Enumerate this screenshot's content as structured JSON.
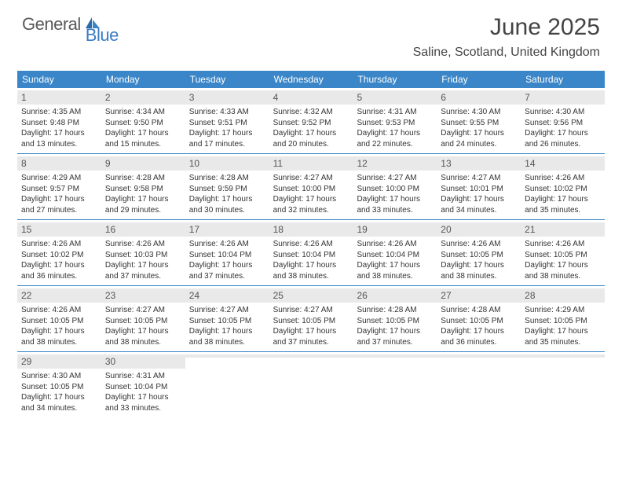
{
  "logo": {
    "text1": "General",
    "text2": "Blue"
  },
  "title": "June 2025",
  "location": "Saline, Scotland, United Kingdom",
  "colors": {
    "header_bg": "#3a86c8",
    "header_text": "#ffffff",
    "daynum_bg": "#e9e9e9",
    "text": "#333333",
    "logo_gray": "#5a5a5a",
    "logo_blue": "#3a7cc4",
    "title_color": "#444444",
    "divider": "#3a86c8"
  },
  "dow": [
    "Sunday",
    "Monday",
    "Tuesday",
    "Wednesday",
    "Thursday",
    "Friday",
    "Saturday"
  ],
  "weeks": [
    [
      {
        "n": "1",
        "sr": "Sunrise: 4:35 AM",
        "ss": "Sunset: 9:48 PM",
        "d1": "Daylight: 17 hours",
        "d2": "and 13 minutes."
      },
      {
        "n": "2",
        "sr": "Sunrise: 4:34 AM",
        "ss": "Sunset: 9:50 PM",
        "d1": "Daylight: 17 hours",
        "d2": "and 15 minutes."
      },
      {
        "n": "3",
        "sr": "Sunrise: 4:33 AM",
        "ss": "Sunset: 9:51 PM",
        "d1": "Daylight: 17 hours",
        "d2": "and 17 minutes."
      },
      {
        "n": "4",
        "sr": "Sunrise: 4:32 AM",
        "ss": "Sunset: 9:52 PM",
        "d1": "Daylight: 17 hours",
        "d2": "and 20 minutes."
      },
      {
        "n": "5",
        "sr": "Sunrise: 4:31 AM",
        "ss": "Sunset: 9:53 PM",
        "d1": "Daylight: 17 hours",
        "d2": "and 22 minutes."
      },
      {
        "n": "6",
        "sr": "Sunrise: 4:30 AM",
        "ss": "Sunset: 9:55 PM",
        "d1": "Daylight: 17 hours",
        "d2": "and 24 minutes."
      },
      {
        "n": "7",
        "sr": "Sunrise: 4:30 AM",
        "ss": "Sunset: 9:56 PM",
        "d1": "Daylight: 17 hours",
        "d2": "and 26 minutes."
      }
    ],
    [
      {
        "n": "8",
        "sr": "Sunrise: 4:29 AM",
        "ss": "Sunset: 9:57 PM",
        "d1": "Daylight: 17 hours",
        "d2": "and 27 minutes."
      },
      {
        "n": "9",
        "sr": "Sunrise: 4:28 AM",
        "ss": "Sunset: 9:58 PM",
        "d1": "Daylight: 17 hours",
        "d2": "and 29 minutes."
      },
      {
        "n": "10",
        "sr": "Sunrise: 4:28 AM",
        "ss": "Sunset: 9:59 PM",
        "d1": "Daylight: 17 hours",
        "d2": "and 30 minutes."
      },
      {
        "n": "11",
        "sr": "Sunrise: 4:27 AM",
        "ss": "Sunset: 10:00 PM",
        "d1": "Daylight: 17 hours",
        "d2": "and 32 minutes."
      },
      {
        "n": "12",
        "sr": "Sunrise: 4:27 AM",
        "ss": "Sunset: 10:00 PM",
        "d1": "Daylight: 17 hours",
        "d2": "and 33 minutes."
      },
      {
        "n": "13",
        "sr": "Sunrise: 4:27 AM",
        "ss": "Sunset: 10:01 PM",
        "d1": "Daylight: 17 hours",
        "d2": "and 34 minutes."
      },
      {
        "n": "14",
        "sr": "Sunrise: 4:26 AM",
        "ss": "Sunset: 10:02 PM",
        "d1": "Daylight: 17 hours",
        "d2": "and 35 minutes."
      }
    ],
    [
      {
        "n": "15",
        "sr": "Sunrise: 4:26 AM",
        "ss": "Sunset: 10:02 PM",
        "d1": "Daylight: 17 hours",
        "d2": "and 36 minutes."
      },
      {
        "n": "16",
        "sr": "Sunrise: 4:26 AM",
        "ss": "Sunset: 10:03 PM",
        "d1": "Daylight: 17 hours",
        "d2": "and 37 minutes."
      },
      {
        "n": "17",
        "sr": "Sunrise: 4:26 AM",
        "ss": "Sunset: 10:04 PM",
        "d1": "Daylight: 17 hours",
        "d2": "and 37 minutes."
      },
      {
        "n": "18",
        "sr": "Sunrise: 4:26 AM",
        "ss": "Sunset: 10:04 PM",
        "d1": "Daylight: 17 hours",
        "d2": "and 38 minutes."
      },
      {
        "n": "19",
        "sr": "Sunrise: 4:26 AM",
        "ss": "Sunset: 10:04 PM",
        "d1": "Daylight: 17 hours",
        "d2": "and 38 minutes."
      },
      {
        "n": "20",
        "sr": "Sunrise: 4:26 AM",
        "ss": "Sunset: 10:05 PM",
        "d1": "Daylight: 17 hours",
        "d2": "and 38 minutes."
      },
      {
        "n": "21",
        "sr": "Sunrise: 4:26 AM",
        "ss": "Sunset: 10:05 PM",
        "d1": "Daylight: 17 hours",
        "d2": "and 38 minutes."
      }
    ],
    [
      {
        "n": "22",
        "sr": "Sunrise: 4:26 AM",
        "ss": "Sunset: 10:05 PM",
        "d1": "Daylight: 17 hours",
        "d2": "and 38 minutes."
      },
      {
        "n": "23",
        "sr": "Sunrise: 4:27 AM",
        "ss": "Sunset: 10:05 PM",
        "d1": "Daylight: 17 hours",
        "d2": "and 38 minutes."
      },
      {
        "n": "24",
        "sr": "Sunrise: 4:27 AM",
        "ss": "Sunset: 10:05 PM",
        "d1": "Daylight: 17 hours",
        "d2": "and 38 minutes."
      },
      {
        "n": "25",
        "sr": "Sunrise: 4:27 AM",
        "ss": "Sunset: 10:05 PM",
        "d1": "Daylight: 17 hours",
        "d2": "and 37 minutes."
      },
      {
        "n": "26",
        "sr": "Sunrise: 4:28 AM",
        "ss": "Sunset: 10:05 PM",
        "d1": "Daylight: 17 hours",
        "d2": "and 37 minutes."
      },
      {
        "n": "27",
        "sr": "Sunrise: 4:28 AM",
        "ss": "Sunset: 10:05 PM",
        "d1": "Daylight: 17 hours",
        "d2": "and 36 minutes."
      },
      {
        "n": "28",
        "sr": "Sunrise: 4:29 AM",
        "ss": "Sunset: 10:05 PM",
        "d1": "Daylight: 17 hours",
        "d2": "and 35 minutes."
      }
    ],
    [
      {
        "n": "29",
        "sr": "Sunrise: 4:30 AM",
        "ss": "Sunset: 10:05 PM",
        "d1": "Daylight: 17 hours",
        "d2": "and 34 minutes."
      },
      {
        "n": "30",
        "sr": "Sunrise: 4:31 AM",
        "ss": "Sunset: 10:04 PM",
        "d1": "Daylight: 17 hours",
        "d2": "and 33 minutes."
      },
      {
        "n": "",
        "sr": "",
        "ss": "",
        "d1": "",
        "d2": ""
      },
      {
        "n": "",
        "sr": "",
        "ss": "",
        "d1": "",
        "d2": ""
      },
      {
        "n": "",
        "sr": "",
        "ss": "",
        "d1": "",
        "d2": ""
      },
      {
        "n": "",
        "sr": "",
        "ss": "",
        "d1": "",
        "d2": ""
      },
      {
        "n": "",
        "sr": "",
        "ss": "",
        "d1": "",
        "d2": ""
      }
    ]
  ]
}
